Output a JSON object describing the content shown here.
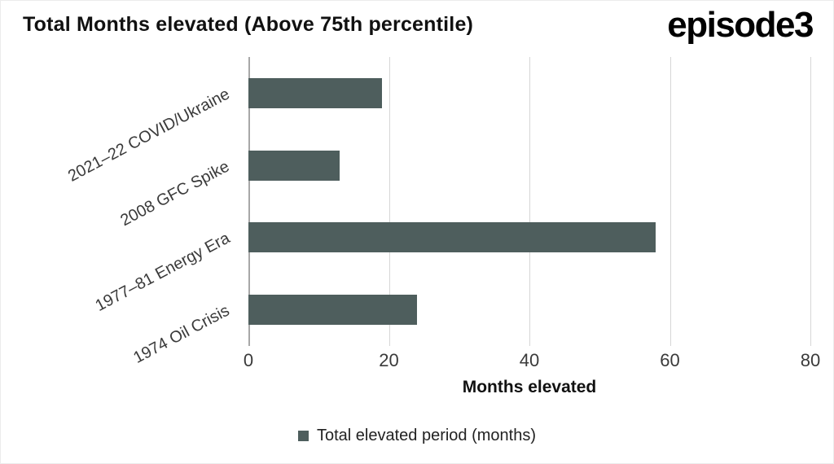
{
  "header": {
    "title": "Total Months elevated (Above 75th percentile)",
    "logo": "episode3"
  },
  "chart_data": {
    "type": "bar",
    "orientation": "horizontal",
    "title": "Total Months elevated (Above 75th percentile)",
    "categories": [
      "2021–22 COVID/Ukraine",
      "2008 GFC Spike",
      "1977–81 Energy Era",
      "1974 Oil Crisis"
    ],
    "values": [
      19,
      13,
      58,
      24
    ],
    "series_name": "Total elevated period (months)",
    "xlabel": "Months elevated",
    "ylabel": "",
    "xlim": [
      0,
      80
    ],
    "xticks": [
      0,
      20,
      40,
      60,
      80
    ],
    "bar_color": "#4e5e5d",
    "grid": true,
    "legend_position": "bottom"
  },
  "legend": {
    "label": "Total elevated period (months)",
    "swatch_color": "#4e5e5d"
  }
}
